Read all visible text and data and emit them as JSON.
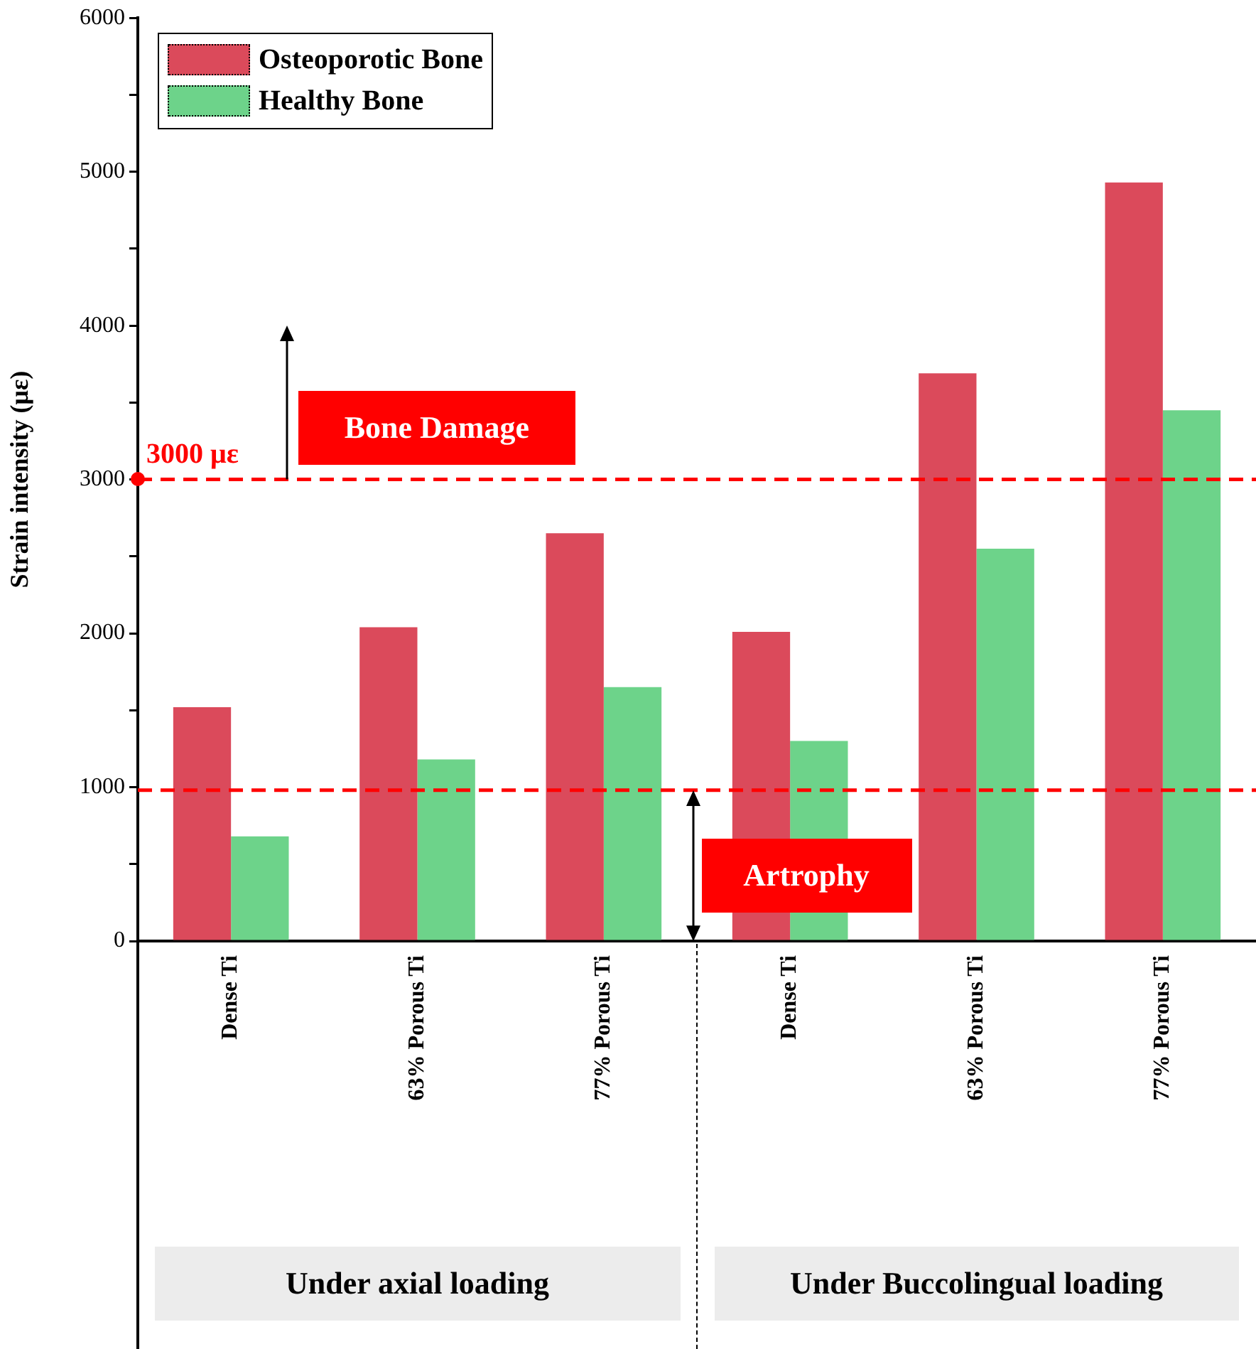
{
  "chart_data": {
    "type": "bar",
    "ylabel": "Strain intensity (με)",
    "categories": [
      "Dense Ti",
      "63% Porous Ti",
      "77% Porous Ti",
      "Dense Ti",
      "63% Porous Ti",
      "77% Porous Ti"
    ],
    "series": [
      {
        "name": "Osteoporotic Bone",
        "color": "#db4a5b",
        "values": [
          1520,
          2040,
          2650,
          2010,
          3690,
          4930
        ]
      },
      {
        "name": "Healthy Bone",
        "color": "#6dd38a",
        "values": [
          680,
          1180,
          1650,
          1300,
          2550,
          3450
        ]
      }
    ],
    "ylim": [
      0,
      6000
    ],
    "yticks": [
      0,
      {
        "value": 500,
        "label": null
      },
      1000,
      {
        "value": 1500,
        "label": null
      },
      2000,
      {
        "value": 2500,
        "label": null
      },
      3000,
      {
        "value": 3500,
        "label": null
      },
      4000,
      {
        "value": 4500,
        "label": null
      },
      5000,
      {
        "value": 5500,
        "label": null
      },
      6000
    ],
    "ref_lines": [
      {
        "axis": "y",
        "value": 3000,
        "label": "3000 με",
        "color": "#ff0000",
        "line_style": "dashed"
      },
      {
        "axis": "y",
        "value": 980,
        "color": "#ff0000",
        "line_style": "dashed"
      }
    ],
    "annotations": [
      {
        "text": "Bone Damage",
        "y": 3000
      },
      {
        "text": "Artrophy",
        "y": 980
      },
      "Under axial loading",
      "Under Buccolingual loading"
    ],
    "legend": "top left",
    "grid": false
  }
}
